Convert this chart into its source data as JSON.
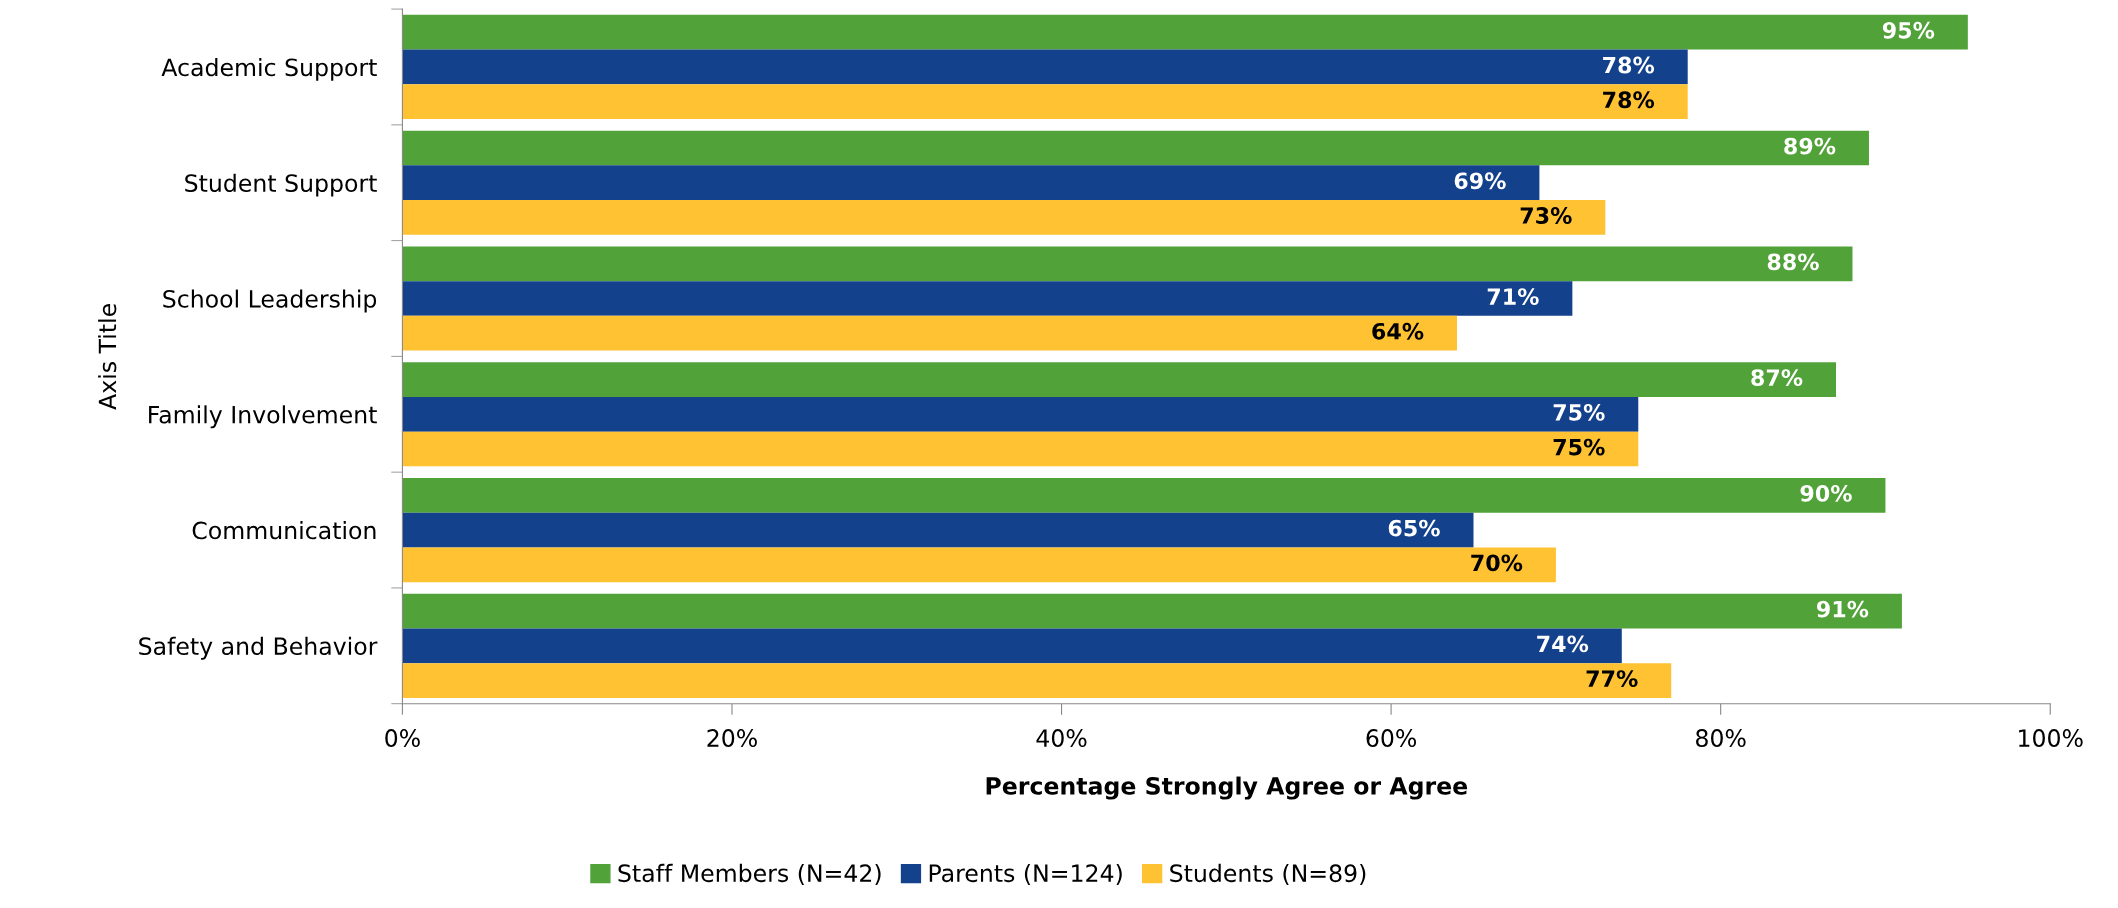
{
  "chart_data": {
    "type": "bar",
    "orientation": "horizontal",
    "xlabel": "Percentage Strongly Agree or Agree",
    "ylabel": "Axis Title",
    "categories": [
      "Academic Support",
      "Student Support",
      "School Leadership",
      "Family Involvement",
      "Communication",
      "Safety and Behavior"
    ],
    "series": [
      {
        "name": "Staff Members (N=42)",
        "color": "#52a23a",
        "values": [
          95,
          89,
          88,
          87,
          90,
          91
        ],
        "value_labels": [
          "95%",
          "89%",
          "88%",
          "87%",
          "90%",
          "91%"
        ]
      },
      {
        "name": "Parents (N=124)",
        "color": "#14418b",
        "values": [
          78,
          69,
          71,
          75,
          65,
          74
        ],
        "value_labels": [
          "78%",
          "69%",
          "71%",
          "75%",
          "65%",
          "74%"
        ]
      },
      {
        "name": "Students (N=89)",
        "color": "#fec233",
        "values": [
          78,
          73,
          64,
          75,
          70,
          77
        ],
        "value_labels": [
          "78%",
          "73%",
          "64%",
          "75%",
          "70%",
          "77%"
        ]
      }
    ],
    "xlim": [
      0,
      100
    ],
    "xticks": [
      {
        "value": 0,
        "label": "0%"
      },
      {
        "value": 20,
        "label": "20%"
      },
      {
        "value": 40,
        "label": "40%"
      },
      {
        "value": 60,
        "label": "60%"
      },
      {
        "value": 80,
        "label": "80%"
      },
      {
        "value": 100,
        "label": "100%"
      }
    ],
    "grid": false,
    "legend": "bottom"
  }
}
